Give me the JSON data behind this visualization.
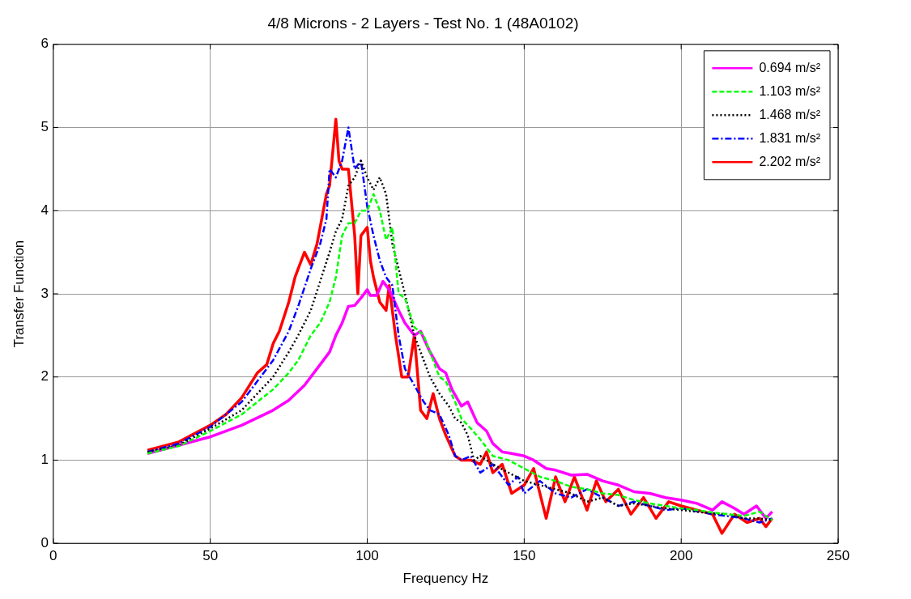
{
  "chart_data": {
    "type": "line",
    "title": "4/8 Microns - 2 Layers - Test No. 1 (48A0102)",
    "xlabel": "Frequency Hz",
    "ylabel": "Transfer Function",
    "xlim": [
      0,
      250
    ],
    "xticks": [
      0,
      50,
      100,
      150,
      200,
      250
    ],
    "ylim": [
      0,
      6
    ],
    "yticks": [
      0,
      1,
      2,
      3,
      4,
      5,
      6
    ],
    "grid": true,
    "legend": "top right",
    "marker": "none",
    "series": [
      {
        "name": "0.694 m/s²",
        "color": "#ff00ff",
        "line_style": "solid",
        "x": [
          30,
          40,
          50,
          60,
          70,
          75,
          80,
          85,
          88,
          90,
          92,
          94,
          96,
          98,
          100,
          101,
          103,
          105,
          107,
          110,
          112,
          115,
          117,
          120,
          123,
          125,
          127,
          130,
          132,
          135,
          138,
          140,
          143,
          146,
          150,
          153,
          157,
          160,
          165,
          170,
          175,
          180,
          185,
          190,
          195,
          200,
          205,
          210,
          213,
          217,
          220,
          224,
          227,
          229
        ],
        "values": [
          1.08,
          1.18,
          1.28,
          1.42,
          1.6,
          1.72,
          1.9,
          2.15,
          2.3,
          2.5,
          2.65,
          2.85,
          2.86,
          2.95,
          3.05,
          2.98,
          2.98,
          3.15,
          3.05,
          2.8,
          2.65,
          2.5,
          2.55,
          2.3,
          2.1,
          2.05,
          1.85,
          1.65,
          1.7,
          1.45,
          1.35,
          1.2,
          1.1,
          1.08,
          1.05,
          1.0,
          0.9,
          0.88,
          0.82,
          0.83,
          0.75,
          0.7,
          0.62,
          0.6,
          0.55,
          0.52,
          0.48,
          0.4,
          0.5,
          0.42,
          0.35,
          0.45,
          0.3,
          0.38
        ]
      },
      {
        "name": "1.103 m/s²",
        "color": "#00ff00",
        "line_style": "dashed",
        "x": [
          30,
          40,
          50,
          60,
          65,
          70,
          75,
          78,
          82,
          85,
          88,
          90,
          92,
          94,
          96,
          98,
          100,
          102,
          104,
          106,
          108,
          110,
          112,
          115,
          118,
          120,
          123,
          125,
          128,
          130,
          133,
          136,
          140,
          145,
          150,
          155,
          160,
          165,
          170,
          175,
          180,
          185,
          190,
          195,
          200,
          205,
          210,
          215,
          220,
          225,
          229
        ],
        "values": [
          1.08,
          1.17,
          1.35,
          1.55,
          1.7,
          1.85,
          2.05,
          2.2,
          2.5,
          2.65,
          2.9,
          3.2,
          3.7,
          3.85,
          3.85,
          4.0,
          4.0,
          4.2,
          4.0,
          3.65,
          3.8,
          3.0,
          2.95,
          2.6,
          2.5,
          2.3,
          2.0,
          1.95,
          1.7,
          1.5,
          1.38,
          1.25,
          1.05,
          1.0,
          0.9,
          0.8,
          0.75,
          0.68,
          0.65,
          0.6,
          0.58,
          0.52,
          0.48,
          0.45,
          0.42,
          0.4,
          0.37,
          0.35,
          0.33,
          0.38,
          0.28
        ]
      },
      {
        "name": "1.468 m/s²",
        "color": "#000000",
        "line_style": "dotted",
        "x": [
          30,
          40,
          50,
          60,
          65,
          70,
          75,
          78,
          82,
          85,
          88,
          90,
          92,
          94,
          96,
          98,
          100,
          102,
          104,
          106,
          108,
          110,
          112,
          115,
          118,
          120,
          123,
          126,
          128,
          130,
          132,
          134,
          136,
          140,
          145,
          150,
          155,
          160,
          165,
          170,
          175,
          180,
          185,
          190,
          195,
          200,
          205,
          210,
          215,
          220,
          225,
          229
        ],
        "values": [
          1.1,
          1.18,
          1.38,
          1.6,
          1.8,
          2.0,
          2.3,
          2.5,
          2.8,
          3.15,
          3.5,
          3.75,
          3.9,
          4.3,
          4.4,
          4.6,
          4.4,
          4.25,
          4.4,
          4.2,
          3.6,
          3.3,
          3.0,
          2.5,
          2.2,
          2.0,
          1.8,
          1.65,
          1.5,
          1.45,
          1.3,
          1.0,
          1.05,
          0.95,
          0.85,
          0.75,
          0.7,
          0.65,
          0.6,
          0.5,
          0.55,
          0.45,
          0.48,
          0.45,
          0.42,
          0.4,
          0.38,
          0.36,
          0.35,
          0.3,
          0.3,
          0.28
        ]
      },
      {
        "name": "1.831 m/s²",
        "color": "#0000ff",
        "line_style": "dashdot",
        "x": [
          30,
          40,
          50,
          60,
          65,
          70,
          75,
          78,
          82,
          85,
          87,
          88,
          90,
          92,
          94,
          96,
          98,
          100,
          102,
          104,
          106,
          108,
          110,
          112,
          115,
          118,
          120,
          123,
          126,
          128,
          130,
          133,
          136,
          140,
          145,
          148,
          150,
          155,
          160,
          165,
          170,
          175,
          180,
          185,
          190,
          195,
          200,
          210,
          220,
          225,
          229
        ],
        "values": [
          1.1,
          1.2,
          1.4,
          1.7,
          1.95,
          2.2,
          2.55,
          2.85,
          3.3,
          3.6,
          3.9,
          4.5,
          4.4,
          4.6,
          5.0,
          4.5,
          4.6,
          4.05,
          3.7,
          3.4,
          3.2,
          3.1,
          2.5,
          2.1,
          1.9,
          1.7,
          1.6,
          1.55,
          1.3,
          1.05,
          1.0,
          1.05,
          0.85,
          0.95,
          0.7,
          0.8,
          0.6,
          0.75,
          0.6,
          0.55,
          0.65,
          0.55,
          0.45,
          0.5,
          0.45,
          0.4,
          0.42,
          0.35,
          0.3,
          0.25,
          0.3
        ]
      },
      {
        "name": "2.202 m/s²",
        "color": "#ff0000",
        "line_style": "solid",
        "x": [
          30,
          40,
          50,
          55,
          60,
          65,
          68,
          70,
          72,
          75,
          77,
          80,
          82,
          84,
          86,
          87,
          88,
          89,
          90,
          91,
          92,
          94,
          96,
          97,
          98,
          100,
          101,
          102,
          104,
          106,
          107,
          109,
          111,
          113,
          115,
          117,
          119,
          121,
          123,
          125,
          128,
          130,
          133,
          136,
          138,
          140,
          143,
          146,
          150,
          153,
          157,
          160,
          163,
          166,
          170,
          173,
          176,
          180,
          184,
          188,
          192,
          196,
          200,
          205,
          210,
          213,
          217,
          221,
          225,
          227,
          229
        ],
        "values": [
          1.12,
          1.22,
          1.42,
          1.55,
          1.75,
          2.05,
          2.15,
          2.4,
          2.55,
          2.9,
          3.2,
          3.5,
          3.35,
          3.6,
          4.0,
          4.2,
          4.3,
          4.7,
          5.1,
          4.6,
          4.5,
          4.5,
          3.7,
          3.0,
          3.7,
          3.8,
          3.4,
          3.2,
          2.9,
          2.8,
          3.1,
          2.5,
          2.0,
          2.0,
          2.5,
          1.6,
          1.5,
          1.8,
          1.5,
          1.3,
          1.05,
          1.0,
          1.0,
          0.95,
          1.1,
          0.85,
          0.95,
          0.6,
          0.7,
          0.9,
          0.3,
          0.8,
          0.5,
          0.8,
          0.4,
          0.75,
          0.5,
          0.65,
          0.35,
          0.55,
          0.3,
          0.5,
          0.45,
          0.4,
          0.35,
          0.12,
          0.35,
          0.25,
          0.3,
          0.2,
          0.3
        ]
      }
    ]
  }
}
